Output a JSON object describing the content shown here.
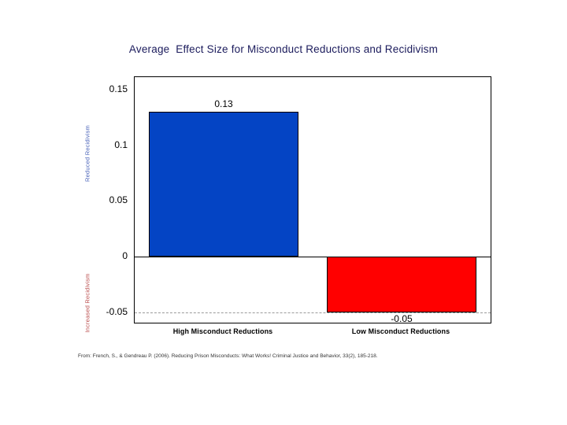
{
  "chart_data": {
    "type": "bar",
    "title": "Average  Effect Size for Misconduct Reductions and Recidivism",
    "categories": [
      "High Misconduct Reductions",
      "Low Misconduct Reductions"
    ],
    "values": [
      0.13,
      -0.05
    ],
    "value_labels": [
      "0.13",
      "-0.05"
    ],
    "bar_colors": [
      "#0444C4",
      "#FF0000"
    ],
    "bar_border_color": "#000000",
    "ylabel_positive": "Reduced Recidivism",
    "ylabel_negative": "Increased Recidivism",
    "ytick_labels": [
      "0.15",
      "0.1",
      "0.05",
      "0",
      "-0.05"
    ],
    "ytick_values": [
      0.15,
      0.1,
      0.05,
      0,
      -0.05
    ],
    "ylim": [
      -0.06,
      0.161
    ],
    "zero_line": true,
    "reference_line": {
      "value": -0.05,
      "style": "dash-dot",
      "color": "#9a9a9a"
    },
    "grid": "off",
    "legend": "none",
    "xlabel": "",
    "ylabel": ""
  },
  "footer": {
    "citation": "From: French, S., & Gendreau P. (2006). Reducing Prison Misconducts: What Works! Criminal Justice and Behavior, 33(2), 185-218."
  },
  "page": {
    "background_color": "#FFFFFF",
    "title_color": "#1b1b5c"
  }
}
